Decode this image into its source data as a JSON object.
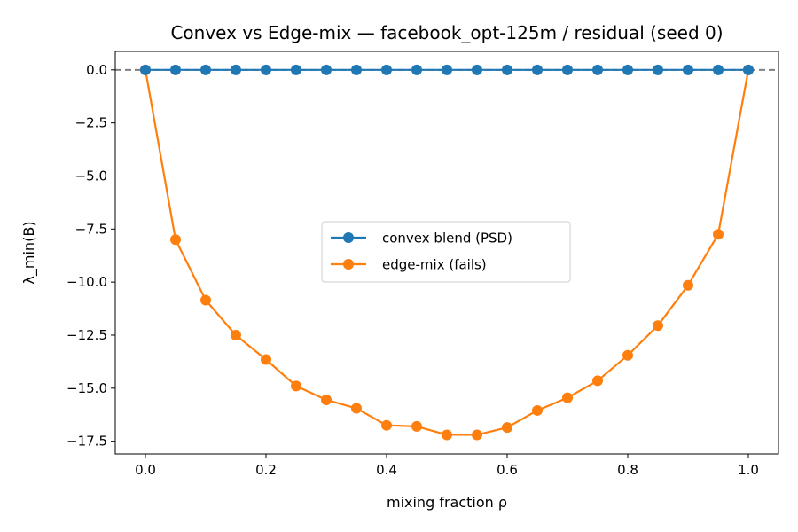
{
  "chart_data": {
    "type": "line",
    "title": "Convex vs Edge-mix — facebook_opt-125m / residual (seed 0)",
    "xlabel": "mixing fraction ρ",
    "ylabel": "λ_min(B)",
    "xlim": [
      -0.05,
      1.05
    ],
    "ylim": [
      -18.1,
      0.87
    ],
    "xticks": [
      "0.0",
      "0.2",
      "0.4",
      "0.6",
      "0.8",
      "1.0"
    ],
    "yticks": [
      "0.0",
      "−2.5",
      "−5.0",
      "−7.5",
      "−10.0",
      "−12.5",
      "−15.0",
      "−17.5"
    ],
    "grid": false,
    "legend_position": "center",
    "reference_line": {
      "y": 0,
      "style": "dashed",
      "color": "#808080"
    },
    "x": [
      0.0,
      0.05,
      0.1,
      0.15,
      0.2,
      0.25,
      0.3,
      0.35,
      0.4,
      0.45,
      0.5,
      0.55,
      0.6,
      0.65,
      0.7,
      0.75,
      0.8,
      0.85,
      0.9,
      0.95,
      1.0
    ],
    "series": [
      {
        "name": "convex blend (PSD)",
        "color": "#1f77b4",
        "values": [
          0,
          0,
          0,
          0,
          0,
          0,
          0,
          0,
          0,
          0,
          0,
          0,
          0,
          0,
          0,
          0,
          0,
          0,
          0,
          0,
          0
        ]
      },
      {
        "name": "edge-mix (fails)",
        "color": "#ff7f0e",
        "values": [
          0,
          -8.0,
          -10.85,
          -12.5,
          -13.65,
          -14.9,
          -15.55,
          -15.95,
          -16.75,
          -16.8,
          -17.2,
          -17.2,
          -16.85,
          -16.05,
          -15.45,
          -14.65,
          -13.45,
          -12.05,
          -10.15,
          -7.75,
          0
        ]
      }
    ]
  }
}
